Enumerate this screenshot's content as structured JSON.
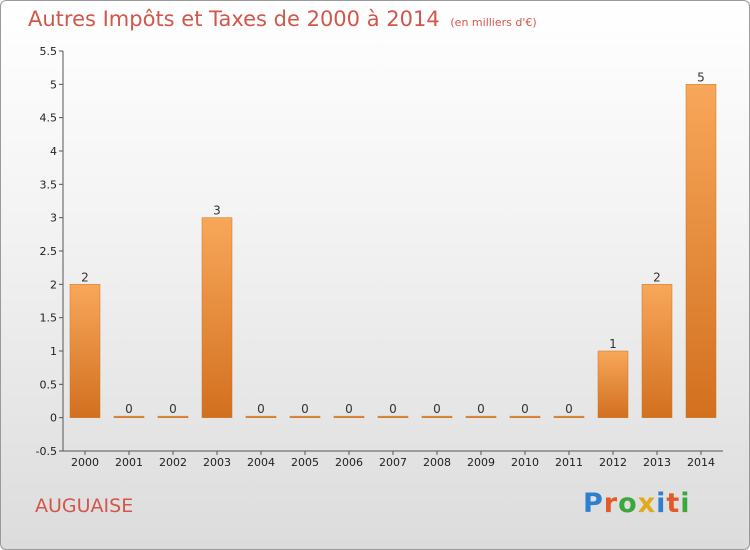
{
  "chart_data": {
    "type": "bar",
    "title": "Autres Impôts et Taxes de 2000 à 2014",
    "subtitle": "(en milliers d'€)",
    "categories": [
      "2000",
      "2001",
      "2002",
      "2003",
      "2004",
      "2005",
      "2006",
      "2007",
      "2008",
      "2009",
      "2010",
      "2011",
      "2012",
      "2013",
      "2014"
    ],
    "values": [
      2,
      0,
      0,
      3,
      0,
      0,
      0,
      0,
      0,
      0,
      0,
      0,
      1,
      2,
      5
    ],
    "data_labels": [
      "2",
      "0",
      "0",
      "3",
      "0",
      "0",
      "0",
      "0",
      "0",
      "0",
      "0",
      "0",
      "1",
      "2",
      "5"
    ],
    "yticks": [
      "-0.5",
      "0",
      "0.5",
      "1",
      "1.5",
      "2",
      "2.5",
      "3",
      "3.5",
      "4",
      "4.5",
      "5",
      "5.5"
    ],
    "ylim": [
      -0.5,
      5.5
    ],
    "grid": false,
    "bar_color": "#f0913a"
  },
  "footer": {
    "town": "AUGUAISE",
    "brand_letters": [
      "P",
      "r",
      "o",
      "x",
      "i",
      "t",
      "i"
    ],
    "brand_colors": [
      "#2f7fd0",
      "#e05a2a",
      "#3aa83a",
      "#e0aa1a",
      "#2f7fd0",
      "#e05a2a",
      "#3aa83a"
    ]
  }
}
